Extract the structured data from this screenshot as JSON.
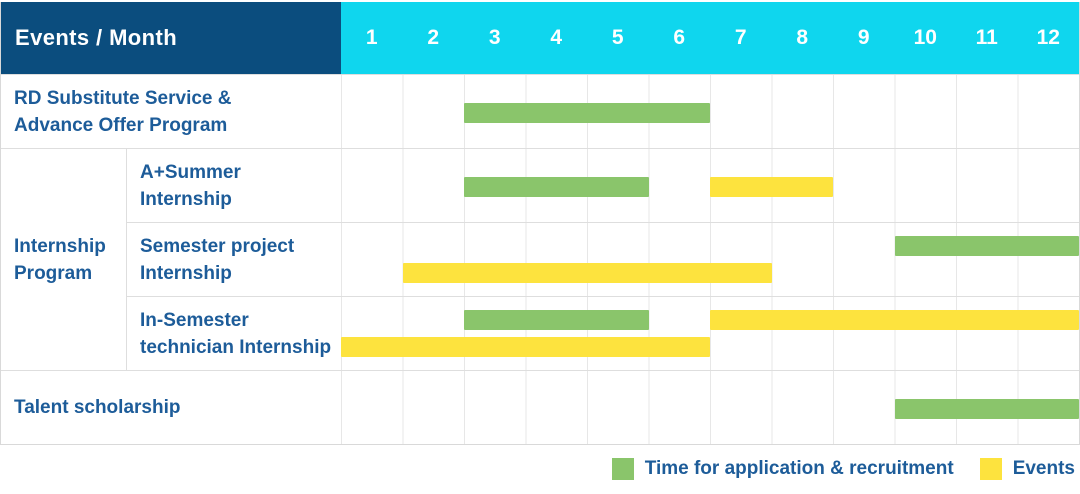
{
  "table": {
    "header": {
      "title": "Events / Month",
      "months": [
        "1",
        "2",
        "3",
        "4",
        "5",
        "6",
        "7",
        "8",
        "9",
        "10",
        "11",
        "12"
      ]
    },
    "group_label_lines": [
      "Internship",
      "Program"
    ]
  },
  "colors": {
    "header_bg": "#0b4d7e",
    "months_bg": "#0fd6ee",
    "header_text": "#ffffff",
    "label_text": "#1d5c99",
    "recruitment_bar": "#8ac56b",
    "event_bar": "#fde33e",
    "gridline": "#e7e7e7",
    "row_line": "#dedede",
    "border": "#d9d9d9"
  },
  "chart_data": {
    "type": "bar",
    "subtype": "gantt",
    "title": "Events / Month",
    "x_axis": {
      "label": "Month",
      "ticks": [
        1,
        2,
        3,
        4,
        5,
        6,
        7,
        8,
        9,
        10,
        11,
        12
      ],
      "range": [
        1,
        12
      ]
    },
    "grid": true,
    "legend_position": "bottom-right",
    "legend": [
      {
        "key": "recruitment",
        "label": "Time for application & recruitment",
        "color": "#8ac56b"
      },
      {
        "key": "events",
        "label": "Events",
        "color": "#fde33e"
      }
    ],
    "rows": [
      {
        "label": "RD Substitute Service & Advance Offer Program",
        "label_lines": [
          "RD Substitute Service &",
          "Advance Offer Program"
        ],
        "group": null,
        "segments": [
          {
            "series": "recruitment",
            "start_month": 3,
            "end_month": 6,
            "lane": "middle"
          }
        ]
      },
      {
        "label": "A+Summer Internship",
        "label_lines": [
          "A+Summer",
          "Internship"
        ],
        "group": "Internship Program",
        "segments": [
          {
            "series": "recruitment",
            "start_month": 3,
            "end_month": 5,
            "lane": "middle"
          },
          {
            "series": "events",
            "start_month": 7,
            "end_month": 8,
            "lane": "middle"
          }
        ]
      },
      {
        "label": "Semester project Internship",
        "label_lines": [
          "Semester project",
          "Internship"
        ],
        "group": "Internship Program",
        "segments": [
          {
            "series": "recruitment",
            "start_month": 10,
            "end_month": 12,
            "lane": "top"
          },
          {
            "series": "events",
            "start_month": 2,
            "end_month": 7,
            "lane": "bottom"
          }
        ]
      },
      {
        "label": "In-Semester technician Internship",
        "label_lines": [
          "In-Semester",
          "technician Internship"
        ],
        "group": "Internship Program",
        "segments": [
          {
            "series": "recruitment",
            "start_month": 3,
            "end_month": 5,
            "lane": "top"
          },
          {
            "series": "events",
            "start_month": 7,
            "end_month": 12,
            "lane": "top"
          },
          {
            "series": "events",
            "start_month": 1,
            "end_month": 6,
            "lane": "bottom"
          }
        ]
      },
      {
        "label": "Talent scholarship",
        "label_lines": [
          "Talent scholarship"
        ],
        "group": null,
        "segments": [
          {
            "series": "recruitment",
            "start_month": 10,
            "end_month": 12,
            "lane": "middle"
          }
        ]
      }
    ]
  }
}
